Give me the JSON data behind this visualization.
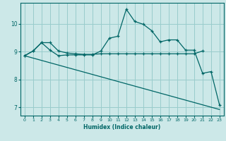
{
  "xlabel": "Humidex (Indice chaleur)",
  "bg_color": "#cce8e8",
  "grid_color": "#99cccc",
  "line_color": "#006666",
  "xlim": [
    -0.5,
    23.5
  ],
  "ylim": [
    6.7,
    10.75
  ],
  "yticks": [
    7,
    8,
    9,
    10
  ],
  "xticks": [
    0,
    1,
    2,
    3,
    4,
    5,
    6,
    7,
    8,
    9,
    10,
    11,
    12,
    13,
    14,
    15,
    16,
    17,
    18,
    19,
    20,
    21,
    22,
    23
  ],
  "line1_x": [
    0,
    1,
    2,
    3,
    4,
    5,
    6,
    7,
    8,
    9,
    10,
    11,
    12,
    13,
    14,
    15,
    16,
    17,
    18,
    19,
    20,
    21
  ],
  "line1_y": [
    8.85,
    9.02,
    9.32,
    9.32,
    9.02,
    8.95,
    8.92,
    8.9,
    8.9,
    8.92,
    8.92,
    8.92,
    8.92,
    8.92,
    8.92,
    8.92,
    8.92,
    8.92,
    8.92,
    8.92,
    8.92,
    9.02
  ],
  "line2_x": [
    0,
    1,
    2,
    3,
    4,
    5,
    6,
    7,
    8,
    9,
    10,
    11,
    12,
    13,
    14,
    15,
    16,
    17,
    18,
    19,
    20,
    21,
    22,
    23
  ],
  "line2_y": [
    8.85,
    9.02,
    9.32,
    9.05,
    8.85,
    8.88,
    8.88,
    8.88,
    8.88,
    9.02,
    9.48,
    9.55,
    10.52,
    10.08,
    9.98,
    9.75,
    9.35,
    9.42,
    9.42,
    9.05,
    9.05,
    8.22,
    8.28,
    7.08
  ],
  "line3_x": [
    0,
    23
  ],
  "line3_y": [
    8.85,
    6.92
  ]
}
